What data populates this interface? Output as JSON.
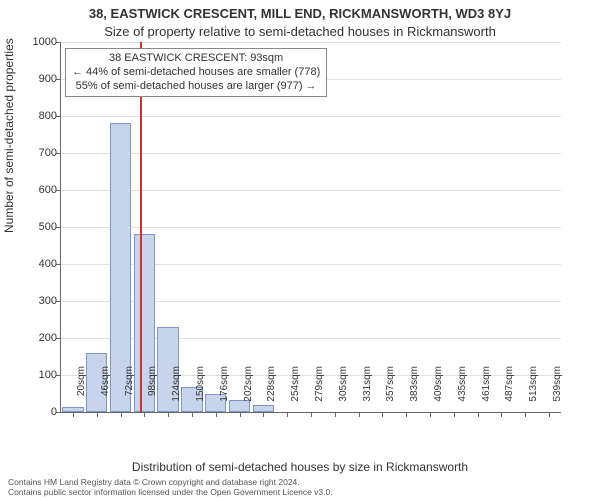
{
  "title": {
    "main": "38, EASTWICK CRESCENT, MILL END, RICKMANSWORTH, WD3 8YJ",
    "sub": "Size of property relative to semi-detached houses in Rickmansworth",
    "main_fontsize": 13,
    "sub_fontsize": 13
  },
  "chart": {
    "type": "histogram",
    "ylabel": "Number of semi-detached properties",
    "xlabel": "Distribution of semi-detached houses by size in Rickmansworth",
    "ylim": [
      0,
      1000
    ],
    "ytick_step": 100,
    "bar_fill": "#c8d4ec",
    "bar_border": "#7e96c4",
    "grid_color": "#e0e0e0",
    "axis_color": "#666666",
    "background_color": "#ffffff",
    "categories": [
      "20sqm",
      "46sqm",
      "72sqm",
      "98sqm",
      "124sqm",
      "150sqm",
      "176sqm",
      "202sqm",
      "228sqm",
      "254sqm",
      "279sqm",
      "305sqm",
      "331sqm",
      "357sqm",
      "383sqm",
      "409sqm",
      "435sqm",
      "461sqm",
      "487sqm",
      "513sqm",
      "539sqm"
    ],
    "values": [
      13,
      160,
      780,
      480,
      230,
      68,
      48,
      33,
      18,
      0,
      0,
      0,
      0,
      0,
      0,
      0,
      0,
      0,
      0,
      0,
      0
    ],
    "bar_width_ratio": 0.9,
    "label_fontsize": 12,
    "tick_fontsize": 11
  },
  "reference": {
    "value_sqm": 93,
    "color": "#d03030",
    "annotation": {
      "line1": "38 EASTWICK CRESCENT: 93sqm",
      "line2": "← 44% of semi-detached houses are smaller (778)",
      "line3": "55% of semi-detached houses are larger (977) →",
      "border_color": "#888888",
      "bg_color": "#ffffff",
      "fontsize": 11
    }
  },
  "footer": {
    "line1": "Contains HM Land Registry data © Crown copyright and database right 2024.",
    "line2": "Contains public sector information licensed under the Open Government Licence v3.0.",
    "fontsize": 8.5,
    "color": "#555555"
  }
}
